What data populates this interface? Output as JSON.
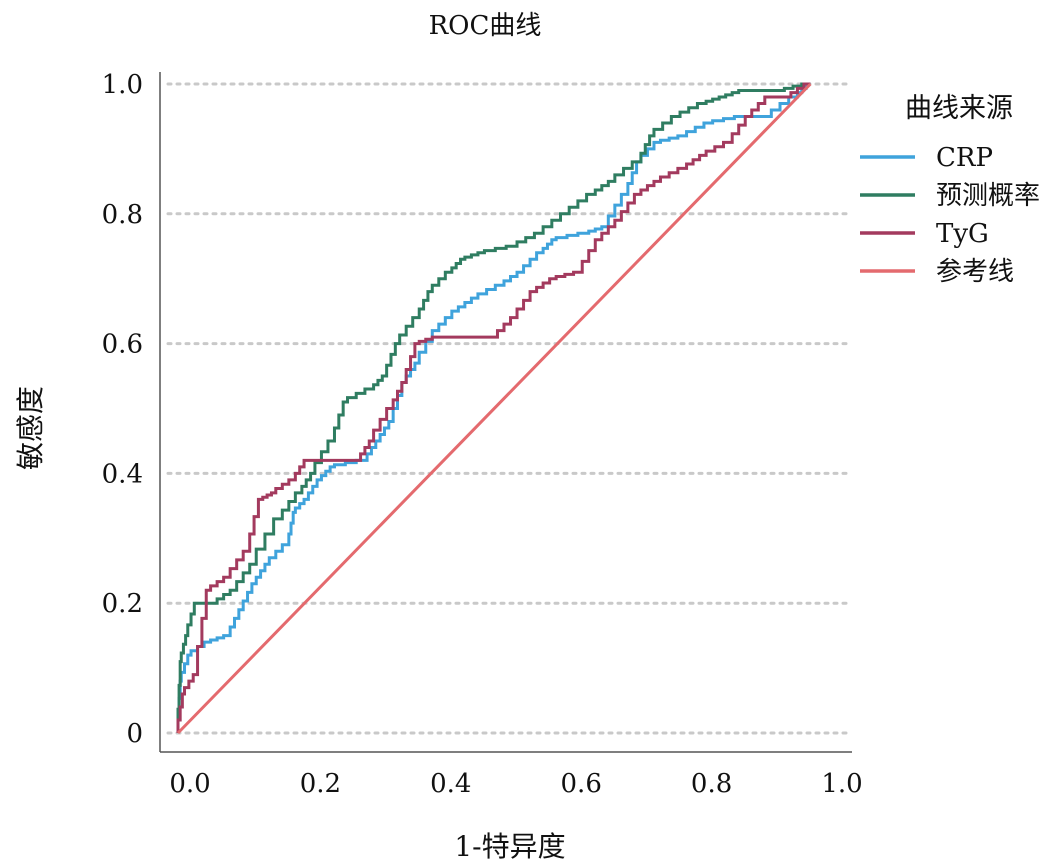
{
  "chart_data": {
    "type": "line",
    "title": "ROC曲线",
    "xlabel": "1-特异度",
    "ylabel": "敏感度",
    "xlim": [
      0,
      1
    ],
    "ylim": [
      0,
      1
    ],
    "x_ticks": [
      "0.0",
      "0.2",
      "0.4",
      "0.6",
      "0.8",
      "1.0"
    ],
    "y_ticks": [
      "0",
      "0.2",
      "0.4",
      "0.6",
      "0.8",
      "1.0"
    ],
    "grid": "horizontal-dotted",
    "legend_title": "曲线来源",
    "legend_position": "right",
    "series": [
      {
        "name": "CRP",
        "color": "#3fa3dc",
        "points": [
          [
            0,
            0
          ],
          [
            0.005,
            0.08
          ],
          [
            0.02,
            0.12
          ],
          [
            0.05,
            0.14
          ],
          [
            0.08,
            0.15
          ],
          [
            0.1,
            0.19
          ],
          [
            0.12,
            0.23
          ],
          [
            0.14,
            0.26
          ],
          [
            0.17,
            0.29
          ],
          [
            0.18,
            0.34
          ],
          [
            0.2,
            0.36
          ],
          [
            0.22,
            0.39
          ],
          [
            0.24,
            0.41
          ],
          [
            0.29,
            0.42
          ],
          [
            0.31,
            0.45
          ],
          [
            0.33,
            0.48
          ],
          [
            0.35,
            0.54
          ],
          [
            0.37,
            0.57
          ],
          [
            0.4,
            0.62
          ],
          [
            0.43,
            0.65
          ],
          [
            0.46,
            0.67
          ],
          [
            0.5,
            0.69
          ],
          [
            0.53,
            0.71
          ],
          [
            0.56,
            0.74
          ],
          [
            0.58,
            0.76
          ],
          [
            0.63,
            0.77
          ],
          [
            0.66,
            0.78
          ],
          [
            0.69,
            0.83
          ],
          [
            0.71,
            0.88
          ],
          [
            0.74,
            0.91
          ],
          [
            0.78,
            0.92
          ],
          [
            0.82,
            0.94
          ],
          [
            0.87,
            0.95
          ],
          [
            0.91,
            0.95
          ],
          [
            0.95,
            0.98
          ],
          [
            0.97,
            1.0
          ]
        ]
      },
      {
        "name": "预测概率",
        "color": "#2f7d61",
        "points": [
          [
            0,
            0
          ],
          [
            0.005,
            0.11
          ],
          [
            0.015,
            0.15
          ],
          [
            0.03,
            0.2
          ],
          [
            0.06,
            0.2
          ],
          [
            0.09,
            0.22
          ],
          [
            0.12,
            0.26
          ],
          [
            0.16,
            0.33
          ],
          [
            0.19,
            0.37
          ],
          [
            0.21,
            0.4
          ],
          [
            0.24,
            0.45
          ],
          [
            0.26,
            0.51
          ],
          [
            0.3,
            0.53
          ],
          [
            0.32,
            0.55
          ],
          [
            0.34,
            0.6
          ],
          [
            0.37,
            0.64
          ],
          [
            0.39,
            0.68
          ],
          [
            0.42,
            0.71
          ],
          [
            0.44,
            0.73
          ],
          [
            0.47,
            0.74
          ],
          [
            0.52,
            0.75
          ],
          [
            0.56,
            0.77
          ],
          [
            0.6,
            0.8
          ],
          [
            0.64,
            0.83
          ],
          [
            0.67,
            0.85
          ],
          [
            0.71,
            0.88
          ],
          [
            0.73,
            0.92
          ],
          [
            0.77,
            0.95
          ],
          [
            0.81,
            0.97
          ],
          [
            0.84,
            0.98
          ],
          [
            0.87,
            0.99
          ],
          [
            0.93,
            0.99
          ],
          [
            0.97,
            1.0
          ]
        ]
      },
      {
        "name": "TyG",
        "color": "#a33a5e",
        "points": [
          [
            0,
            0
          ],
          [
            0.01,
            0.06
          ],
          [
            0.03,
            0.09
          ],
          [
            0.05,
            0.22
          ],
          [
            0.08,
            0.24
          ],
          [
            0.11,
            0.28
          ],
          [
            0.13,
            0.36
          ],
          [
            0.15,
            0.37
          ],
          [
            0.18,
            0.39
          ],
          [
            0.2,
            0.42
          ],
          [
            0.24,
            0.42
          ],
          [
            0.28,
            0.42
          ],
          [
            0.3,
            0.45
          ],
          [
            0.33,
            0.5
          ],
          [
            0.35,
            0.54
          ],
          [
            0.37,
            0.6
          ],
          [
            0.4,
            0.61
          ],
          [
            0.45,
            0.61
          ],
          [
            0.49,
            0.61
          ],
          [
            0.52,
            0.64
          ],
          [
            0.55,
            0.68
          ],
          [
            0.58,
            0.7
          ],
          [
            0.62,
            0.71
          ],
          [
            0.65,
            0.76
          ],
          [
            0.68,
            0.79
          ],
          [
            0.71,
            0.83
          ],
          [
            0.74,
            0.85
          ],
          [
            0.78,
            0.87
          ],
          [
            0.81,
            0.89
          ],
          [
            0.85,
            0.91
          ],
          [
            0.88,
            0.95
          ],
          [
            0.91,
            0.98
          ],
          [
            0.94,
            0.98
          ],
          [
            0.97,
            1.0
          ]
        ]
      },
      {
        "name": "参考线",
        "color": "#e46a6e",
        "points": [
          [
            0,
            0
          ],
          [
            0.97,
            1.0
          ]
        ]
      }
    ]
  }
}
